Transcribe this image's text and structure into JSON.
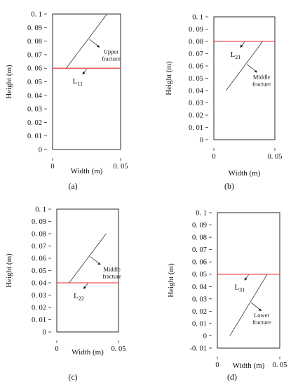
{
  "chart_data": [
    {
      "type": "diagram",
      "panel": "(a)",
      "xlabel": "Width (m)",
      "ylabel": "Height (m)",
      "xlim": [
        0,
        0.05
      ],
      "ylim": [
        0,
        0.1
      ],
      "xticks": [
        "0",
        "0. 05"
      ],
      "yticks": [
        "0",
        "0. 01",
        "0. 02",
        "0. 03",
        "0. 04",
        "0. 05",
        "0. 06",
        "0. 07",
        "0. 08",
        "0. 09",
        "0. 1"
      ],
      "fracture": {
        "label": "Upper fracture",
        "label_lines": [
          "Upper",
          "fracture"
        ],
        "x": [
          0.01,
          0.04
        ],
        "y": [
          0.06,
          0.1
        ],
        "color": "#333333"
      },
      "line": {
        "label_base": "L",
        "label_sub": "11",
        "y": 0.06,
        "color": "#e8262a"
      }
    },
    {
      "type": "diagram",
      "panel": "(b)",
      "xlabel": "Width (m)",
      "ylabel": "Height (m)",
      "xlim": [
        0,
        0.05
      ],
      "ylim": [
        0,
        0.1
      ],
      "xticks": [
        "0",
        "0. 05"
      ],
      "yticks": [
        "0",
        "0. 01",
        "0. 02",
        "0. 03",
        "0. 04",
        "0. 05",
        "0. 06",
        "0. 07",
        "0. 08",
        "0. 09",
        "0. 1"
      ],
      "fracture": {
        "label": "Middle fracture",
        "label_lines": [
          "Middle",
          "fracture"
        ],
        "x": [
          0.01,
          0.04
        ],
        "y": [
          0.04,
          0.08
        ],
        "color": "#333333"
      },
      "line": {
        "label_base": "L",
        "label_sub": "21",
        "y": 0.08,
        "color": "#e8262a"
      }
    },
    {
      "type": "diagram",
      "panel": "(c)",
      "xlabel": "Width (m)",
      "ylabel": "Height (m)",
      "xlim": [
        0,
        0.05
      ],
      "ylim": [
        0,
        0.1
      ],
      "xticks": [
        "0",
        "0. 05"
      ],
      "yticks": [
        "0",
        "0. 01",
        "0. 02",
        "0. 03",
        "0. 04",
        "0. 05",
        "0. 06",
        "0. 07",
        "0. 08",
        "0. 09",
        "0. 1"
      ],
      "fracture": {
        "label": "Middle fracture",
        "label_lines": [
          "Middle",
          "fracture"
        ],
        "x": [
          0.01,
          0.04
        ],
        "y": [
          0.04,
          0.08
        ],
        "color": "#333333"
      },
      "line": {
        "label_base": "L",
        "label_sub": "22",
        "y": 0.04,
        "color": "#e8262a"
      }
    },
    {
      "type": "diagram",
      "panel": "(d)",
      "xlabel": "Width (m)",
      "ylabel": "Height (m)",
      "xlim": [
        0,
        0.05
      ],
      "ylim": [
        -0.01,
        0.1
      ],
      "xticks": [
        "0",
        "0. 05"
      ],
      "yticks": [
        "-0. 01",
        "0",
        "0. 01",
        "0. 02",
        "0. 03",
        "0. 04",
        "0. 05",
        "0. 06",
        "0. 07",
        "0. 08",
        "0. 09",
        "0. 1"
      ],
      "fracture": {
        "label": "Lower fracture",
        "label_lines": [
          "Lower",
          "fracture"
        ],
        "x": [
          0.01,
          0.04
        ],
        "y": [
          0.0,
          0.05
        ],
        "color": "#333333"
      },
      "line": {
        "label_base": "L",
        "label_sub": "31",
        "y": 0.05,
        "color": "#e8262a"
      }
    }
  ]
}
